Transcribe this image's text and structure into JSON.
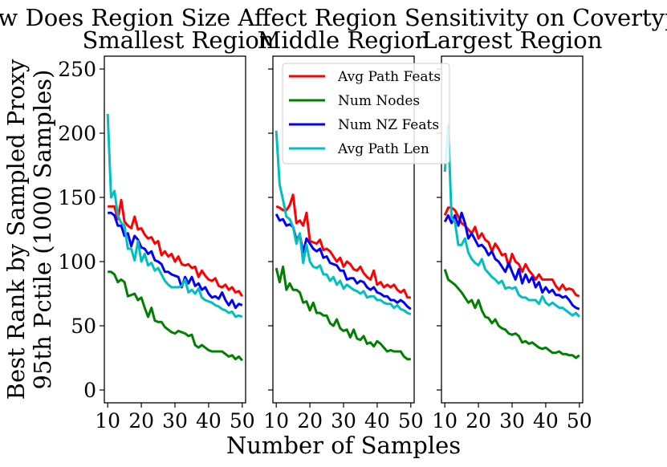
{
  "chart_data": {
    "type": "line",
    "title": "How Does Region Size Affect Region Sensitivity on Covertype?",
    "xlabel": "Number of Samples",
    "ylabel_line1": "Best Rank by Sampled Proxy",
    "ylabel_line2": "95th Pctile (1000 Samples)",
    "xlim": [
      9,
      51
    ],
    "ylim": [
      -10,
      260
    ],
    "xticks": [
      10,
      20,
      30,
      40,
      50
    ],
    "yticks": [
      0,
      50,
      100,
      150,
      200,
      250
    ],
    "x": [
      10,
      11,
      12,
      13,
      14,
      15,
      16,
      17,
      18,
      19,
      20,
      21,
      22,
      23,
      24,
      25,
      26,
      27,
      28,
      29,
      30,
      31,
      32,
      33,
      34,
      35,
      36,
      37,
      38,
      39,
      40,
      41,
      42,
      43,
      44,
      45,
      46,
      47,
      48,
      49,
      50
    ],
    "legend": {
      "location": "upper-left of middle panel",
      "entries": [
        "Avg Path Feats",
        "Num Nodes",
        "Num NZ Feats",
        "Avg Path Len"
      ]
    },
    "series_colors": {
      "Avg Path Feats": "#ff0000",
      "Num Nodes": "#008000",
      "Num NZ Feats": "#0000ff",
      "Avg Path Len": "#00bfbf"
    },
    "panels": [
      {
        "title": "Smallest Region",
        "series": [
          {
            "name": "Avg Path Feats",
            "values": [
              143,
              143,
              143,
              133,
              148,
              131,
              128,
              126,
              135,
              125,
              126,
              121,
              118,
              119,
              114,
              116,
              105,
              108,
              104,
              106,
              100,
              104,
              98,
              97,
              98,
              95,
              96,
              88,
              93,
              89,
              86,
              85,
              87,
              81,
              80,
              82,
              78,
              80,
              76,
              77,
              73
            ]
          },
          {
            "name": "Num Nodes",
            "values": [
              92,
              92,
              90,
              84,
              86,
              84,
              73,
              74,
              75,
              70,
              72,
              64,
              57,
              64,
              54,
              53,
              53,
              49,
              47,
              45,
              44,
              46,
              45,
              44,
              42,
              43,
              35,
              33,
              35,
              33,
              31,
              30,
              30,
              30,
              30,
              28,
              26,
              27,
              24,
              26,
              23
            ]
          },
          {
            "name": "Num NZ Feats",
            "values": [
              138,
              138,
              136,
              128,
              128,
              120,
              122,
              112,
              120,
              117,
              111,
              110,
              106,
              108,
              101,
              100,
              98,
              92,
              92,
              90,
              89,
              88,
              80,
              88,
              83,
              88,
              81,
              83,
              78,
              80,
              75,
              72,
              73,
              71,
              76,
              70,
              66,
              70,
              64,
              67,
              66
            ]
          },
          {
            "name": "Avg Path Len",
            "values": [
              215,
              150,
              155,
              136,
              130,
              128,
              110,
              110,
              101,
              116,
              100,
              106,
              97,
              99,
              93,
              95,
              90,
              85,
              82,
              80,
              80,
              80,
              81,
              86,
              76,
              78,
              75,
              79,
              72,
              70,
              69,
              68,
              66,
              65,
              63,
              62,
              60,
              61,
              57,
              58,
              57
            ]
          }
        ]
      },
      {
        "title": "Middle Region",
        "series": [
          {
            "name": "Avg Path Feats",
            "values": [
              143,
              142,
              140,
              140,
              144,
              152,
              130,
              132,
              128,
              138,
              116,
              115,
              114,
              117,
              109,
              110,
              108,
              104,
              100,
              103,
              96,
              100,
              98,
              94,
              93,
              96,
              91,
              88,
              86,
              93,
              82,
              84,
              80,
              82,
              80,
              82,
              78,
              76,
              78,
              72,
              72
            ]
          },
          {
            "name": "Num Nodes",
            "values": [
              95,
              84,
              96,
              78,
              83,
              78,
              78,
              76,
              68,
              69,
              62,
              68,
              60,
              60,
              58,
              58,
              52,
              50,
              55,
              48,
              46,
              47,
              41,
              47,
              40,
              39,
              42,
              36,
              37,
              34,
              38,
              36,
              33,
              30,
              31,
              30,
              30,
              30,
              26,
              24,
              24
            ]
          },
          {
            "name": "Num NZ Feats",
            "values": [
              137,
              132,
              133,
              128,
              129,
              127,
              117,
              121,
              107,
              118,
              114,
              110,
              108,
              110,
              103,
              104,
              99,
              98,
              97,
              93,
              93,
              86,
              87,
              87,
              83,
              85,
              84,
              80,
              78,
              80,
              76,
              75,
              73,
              73,
              70,
              70,
              68,
              70,
              68,
              65,
              63
            ]
          },
          {
            "name": "Avg Path Len",
            "values": [
              202,
              160,
              148,
              135,
              133,
              127,
              114,
              122,
              99,
              113,
              100,
              96,
              95,
              97,
              90,
              90,
              85,
              88,
              82,
              85,
              79,
              82,
              80,
              78,
              77,
              75,
              77,
              72,
              73,
              73,
              70,
              70,
              68,
              67,
              67,
              64,
              66,
              63,
              62,
              60,
              59
            ]
          }
        ]
      },
      {
        "title": "Largest Region",
        "series": [
          {
            "name": "Avg Path Feats",
            "values": [
              136,
              142,
              142,
              140,
              135,
              130,
              128,
              125,
              122,
              127,
              118,
              122,
              117,
              115,
              108,
              114,
              110,
              105,
              106,
              96,
              106,
              100,
              98,
              92,
              98,
              93,
              90,
              86,
              90,
              86,
              86,
              86,
              86,
              81,
              78,
              82,
              78,
              79,
              78,
              74,
              73
            ]
          },
          {
            "name": "Num Nodes",
            "values": [
              94,
              86,
              84,
              82,
              79,
              76,
              72,
              68,
              70,
              64,
              70,
              62,
              57,
              56,
              52,
              55,
              50,
              48,
              47,
              44,
              43,
              44,
              42,
              37,
              38,
              36,
              37,
              35,
              33,
              32,
              33,
              31,
              29,
              29,
              30,
              28,
              28,
              27,
              27,
              25,
              27
            ]
          },
          {
            "name": "Num NZ Feats",
            "values": [
              131,
              136,
              130,
              136,
              128,
              138,
              130,
              118,
              122,
              117,
              112,
              113,
              110,
              105,
              108,
              102,
              100,
              96,
              92,
              99,
              92,
              86,
              94,
              83,
              90,
              84,
              88,
              80,
              84,
              76,
              80,
              76,
              78,
              74,
              74,
              72,
              73,
              70,
              66,
              64,
              63
            ]
          },
          {
            "name": "Avg Path Len",
            "values": [
              170,
              206,
              134,
              131,
              113,
              113,
              118,
              107,
              102,
              99,
              97,
              102,
              94,
              91,
              88,
              86,
              83,
              85,
              79,
              80,
              79,
              80,
              74,
              72,
              72,
              70,
              70,
              70,
              67,
              73,
              68,
              66,
              68,
              66,
              64,
              64,
              62,
              60,
              58,
              60,
              57
            ]
          }
        ]
      }
    ]
  }
}
